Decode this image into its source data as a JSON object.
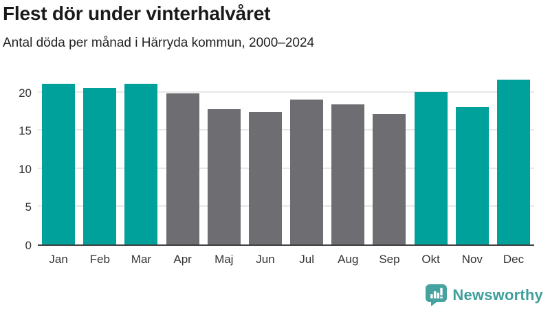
{
  "header": {
    "title": "Flest dör under vinterhalvåret",
    "subtitle": "Antal döda per månad i Härryda kommun, 2000–2024"
  },
  "chart_data": {
    "type": "bar",
    "title": "Flest dör under vinterhalvåret",
    "subtitle": "Antal döda per månad i Härryda kommun, 2000–2024",
    "categories": [
      "Jan",
      "Feb",
      "Mar",
      "Apr",
      "Maj",
      "Jun",
      "Jul",
      "Aug",
      "Sep",
      "Okt",
      "Nov",
      "Dec"
    ],
    "values": [
      21.0,
      20.5,
      21.0,
      19.8,
      17.7,
      17.4,
      19.0,
      18.3,
      17.1,
      20.0,
      18.0,
      21.6
    ],
    "bar_color_keys": [
      "teal",
      "teal",
      "teal",
      "gray",
      "gray",
      "gray",
      "gray",
      "gray",
      "gray",
      "teal",
      "teal",
      "teal"
    ],
    "colors": {
      "teal": "#00a09b",
      "gray": "#6d6d72"
    },
    "xlabel": "",
    "ylabel": "",
    "yticks": [
      0,
      5,
      10,
      15,
      20
    ],
    "ylim": [
      0,
      22.3
    ],
    "grid": true,
    "legend_position": "none"
  },
  "footer": {
    "logo_text": "Newsworthy",
    "logo_text_color": "#3f9f9b",
    "logo_icon_color": "#45a29e",
    "logo_icon": "speech-bubble-bar-chart-exclamation-icon"
  }
}
